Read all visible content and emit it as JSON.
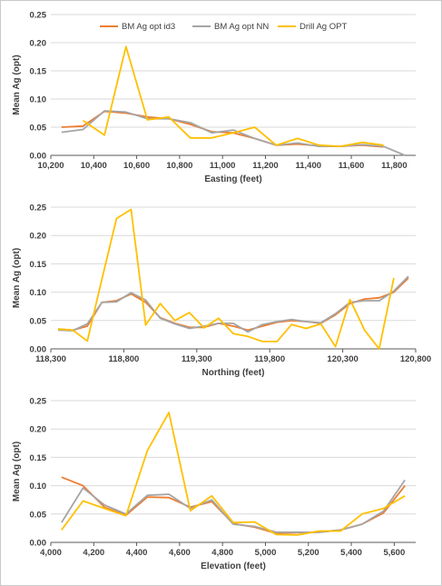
{
  "colors": {
    "bm_id3": "#ED7D31",
    "bm_nn": "#A5A5A5",
    "drill": "#FFC000",
    "axis": "#595959",
    "grid": "#d9d9d9"
  },
  "legend": [
    "BM Ag opt id3",
    "BM Ag opt NN",
    "Drill Ag OPT"
  ],
  "chart_data": [
    {
      "type": "line",
      "xlabel": "Easting (feet)",
      "ylabel": "Mean Ag (opt)",
      "xlim": [
        10200,
        11900
      ],
      "ylim": [
        0,
        0.25
      ],
      "xticks": [
        "10,200",
        "10,400",
        "10,600",
        "10,800",
        "11,000",
        "11,200",
        "11,400",
        "11,600",
        "11,800"
      ],
      "yticks": [
        "0.00",
        "0.05",
        "0.10",
        "0.15",
        "0.20",
        "0.25"
      ],
      "series": [
        {
          "name": "BM Ag opt id3",
          "x": [
            10250,
            10350,
            10450,
            10550,
            10650,
            10750,
            10850,
            10950,
            11050,
            11150,
            11250,
            11350,
            11450,
            11550,
            11650,
            11750
          ],
          "y": [
            0.05,
            0.052,
            0.078,
            0.075,
            0.068,
            0.065,
            0.055,
            0.042,
            0.04,
            0.03,
            0.018,
            0.02,
            0.017,
            0.016,
            0.018,
            0.015
          ]
        },
        {
          "name": "BM Ag opt NN",
          "x": [
            10250,
            10350,
            10450,
            10550,
            10650,
            10750,
            10850,
            10950,
            11050,
            11150,
            11250,
            11350,
            11450,
            11550,
            11650,
            11750,
            11850
          ],
          "y": [
            0.041,
            0.046,
            0.079,
            0.077,
            0.065,
            0.065,
            0.058,
            0.04,
            0.045,
            0.03,
            0.018,
            0.022,
            0.016,
            0.016,
            0.019,
            0.016,
            0.0
          ]
        },
        {
          "name": "Drill Ag OPT",
          "x": [
            10350,
            10450,
            10550,
            10650,
            10750,
            10850,
            10950,
            11050,
            11150,
            11250,
            11350,
            11450,
            11550,
            11650,
            11750
          ],
          "y": [
            0.062,
            0.036,
            0.193,
            0.063,
            0.068,
            0.031,
            0.031,
            0.04,
            0.05,
            0.018,
            0.03,
            0.018,
            0.016,
            0.023,
            0.018
          ]
        }
      ]
    },
    {
      "type": "line",
      "xlabel": "Northing (feet)",
      "ylabel": "Mean Ag (opt)",
      "xlim": [
        118300,
        120800
      ],
      "ylim": [
        0,
        0.25
      ],
      "xticks": [
        "118,300",
        "118,800",
        "119,300",
        "119,800",
        "120,300",
        "120,800"
      ],
      "yticks": [
        "0.00",
        "0.05",
        "0.10",
        "0.15",
        "0.20",
        "0.25"
      ],
      "series": [
        {
          "name": "BM Ag opt id3",
          "x": [
            118350,
            118450,
            118550,
            118650,
            118750,
            118850,
            118950,
            119050,
            119150,
            119250,
            119350,
            119450,
            119550,
            119650,
            119750,
            119850,
            119950,
            120050,
            120150,
            120250,
            120350,
            120450,
            120550,
            120650,
            120750
          ],
          "y": [
            0.035,
            0.033,
            0.04,
            0.082,
            0.085,
            0.097,
            0.082,
            0.055,
            0.045,
            0.038,
            0.038,
            0.045,
            0.04,
            0.033,
            0.04,
            0.047,
            0.05,
            0.048,
            0.045,
            0.06,
            0.08,
            0.088,
            0.09,
            0.1,
            0.125
          ]
        },
        {
          "name": "BM Ag opt NN",
          "x": [
            118350,
            118450,
            118550,
            118650,
            118750,
            118850,
            118950,
            119050,
            119150,
            119250,
            119350,
            119450,
            119550,
            119650,
            119750,
            119850,
            119950,
            120050,
            120150,
            120250,
            120350,
            120450,
            120550,
            120650,
            120750
          ],
          "y": [
            0.033,
            0.032,
            0.044,
            0.082,
            0.083,
            0.099,
            0.086,
            0.054,
            0.044,
            0.036,
            0.04,
            0.045,
            0.045,
            0.03,
            0.043,
            0.048,
            0.052,
            0.048,
            0.046,
            0.062,
            0.082,
            0.085,
            0.085,
            0.102,
            0.128
          ]
        },
        {
          "name": "Drill Ag OPT",
          "x": [
            118350,
            118450,
            118550,
            118650,
            118750,
            118850,
            118950,
            119050,
            119150,
            119250,
            119350,
            119450,
            119550,
            119650,
            119750,
            119850,
            119950,
            120050,
            120150,
            120250,
            120350,
            120450,
            120550,
            120650
          ],
          "y": [
            0.035,
            0.033,
            0.014,
            0.123,
            0.23,
            0.246,
            0.042,
            0.08,
            0.05,
            0.064,
            0.037,
            0.054,
            0.027,
            0.022,
            0.013,
            0.013,
            0.043,
            0.036,
            0.044,
            0.004,
            0.087,
            0.033,
            0.0,
            0.125
          ]
        }
      ]
    },
    {
      "type": "line",
      "xlabel": "Elevation (feet)",
      "ylabel": "Mean Ag (opt)",
      "xlim": [
        4000,
        5700
      ],
      "ylim": [
        0,
        0.25
      ],
      "xticks": [
        "4,000",
        "4,200",
        "4,400",
        "4,600",
        "4,800",
        "5,000",
        "5,200",
        "5,400",
        "5,600"
      ],
      "yticks": [
        "0.00",
        "0.05",
        "0.10",
        "0.15",
        "0.20",
        "0.25"
      ],
      "series": [
        {
          "name": "BM Ag opt id3",
          "x": [
            4050,
            4150,
            4250,
            4350,
            4450,
            4550,
            4650,
            4750,
            4850,
            4950,
            5050,
            5150,
            5250,
            5350,
            5450,
            5550,
            5650
          ],
          "y": [
            0.115,
            0.1,
            0.062,
            0.048,
            0.08,
            0.079,
            0.062,
            0.072,
            0.033,
            0.027,
            0.016,
            0.017,
            0.018,
            0.022,
            0.032,
            0.052,
            0.1
          ]
        },
        {
          "name": "BM Ag opt NN",
          "x": [
            4050,
            4150,
            4250,
            4350,
            4450,
            4550,
            4650,
            4750,
            4850,
            4950,
            5050,
            5150,
            5250,
            5350,
            5450,
            5550,
            5650
          ],
          "y": [
            0.035,
            0.096,
            0.066,
            0.05,
            0.083,
            0.085,
            0.06,
            0.075,
            0.032,
            0.028,
            0.018,
            0.018,
            0.018,
            0.022,
            0.032,
            0.055,
            0.11
          ]
        },
        {
          "name": "Drill Ag OPT",
          "x": [
            4050,
            4150,
            4250,
            4350,
            4450,
            4550,
            4650,
            4750,
            4850,
            4950,
            5050,
            5150,
            5250,
            5350,
            5450,
            5550,
            5650
          ],
          "y": [
            0.022,
            0.073,
            0.06,
            0.047,
            0.162,
            0.229,
            0.056,
            0.082,
            0.035,
            0.036,
            0.014,
            0.013,
            0.02,
            0.02,
            0.05,
            0.06,
            0.082
          ]
        }
      ]
    }
  ]
}
